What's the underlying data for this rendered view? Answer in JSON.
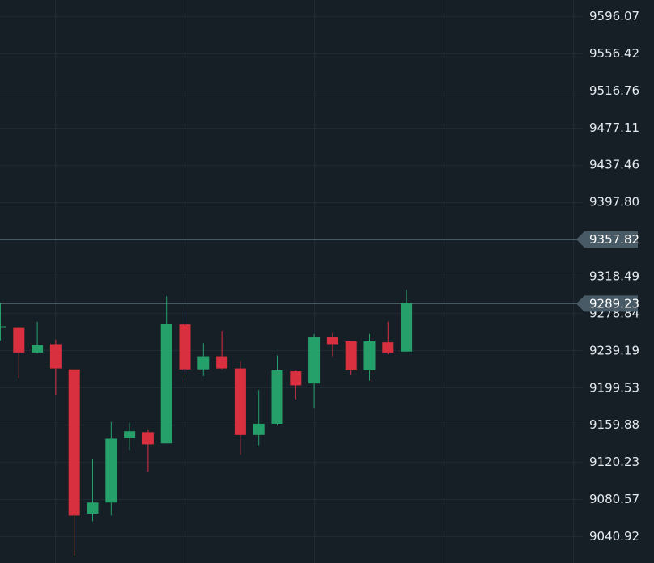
{
  "chart_data": {
    "type": "candlestick",
    "title": "",
    "xlabel": "",
    "ylabel": "",
    "ylim": [
      9020,
      9615
    ],
    "y_ticks": [
      "9596.07",
      "9556.42",
      "9516.76",
      "9477.11",
      "9437.46",
      "9397.80",
      "9318.49",
      "9278.84",
      "9239.19",
      "9199.53",
      "9159.88",
      "9120.23",
      "9080.57",
      "9040.92"
    ],
    "price_lines": [
      {
        "label": "9357.82",
        "value": 9357.82,
        "color": "#485a66"
      },
      {
        "label": "9289.23",
        "value": 9289.23,
        "color": "#485a66"
      }
    ],
    "colors": {
      "background": "#161f26",
      "grid": "#1f2b33",
      "up": "#26a06a",
      "down": "#d8303f",
      "text": "#e6ebef"
    },
    "candles": [
      {
        "o": 9265,
        "h": 9290,
        "l": 9250,
        "c": 9265
      },
      {
        "o": 9264,
        "h": 9264,
        "l": 9210,
        "c": 9237
      },
      {
        "o": 9237,
        "h": 9270,
        "l": 9236,
        "c": 9245
      },
      {
        "o": 9246,
        "h": 9251,
        "l": 9192,
        "c": 9220
      },
      {
        "o": 9219,
        "h": 9219,
        "l": 9020,
        "c": 9063
      },
      {
        "o": 9065,
        "h": 9123,
        "l": 9057,
        "c": 9077
      },
      {
        "o": 9077,
        "h": 9163,
        "l": 9063,
        "c": 9145
      },
      {
        "o": 9146,
        "h": 9162,
        "l": 9133,
        "c": 9153
      },
      {
        "o": 9152,
        "h": 9155,
        "l": 9110,
        "c": 9139
      },
      {
        "o": 9140,
        "h": 9297,
        "l": 9140,
        "c": 9268
      },
      {
        "o": 9267,
        "h": 9282,
        "l": 9211,
        "c": 9219
      },
      {
        "o": 9219,
        "h": 9247,
        "l": 9212,
        "c": 9233
      },
      {
        "o": 9233,
        "h": 9260,
        "l": 9219,
        "c": 9220
      },
      {
        "o": 9220,
        "h": 9228,
        "l": 9128,
        "c": 9149
      },
      {
        "o": 9149,
        "h": 9197,
        "l": 9138,
        "c": 9161
      },
      {
        "o": 9161,
        "h": 9234,
        "l": 9159,
        "c": 9218
      },
      {
        "o": 9217,
        "h": 9218,
        "l": 9187,
        "c": 9202
      },
      {
        "o": 9204,
        "h": 9257,
        "l": 9178,
        "c": 9254
      },
      {
        "o": 9254,
        "h": 9258,
        "l": 9233,
        "c": 9246
      },
      {
        "o": 9249,
        "h": 9249,
        "l": 9213,
        "c": 9218
      },
      {
        "o": 9218,
        "h": 9257,
        "l": 9207,
        "c": 9249
      },
      {
        "o": 9248,
        "h": 9270,
        "l": 9235,
        "c": 9237
      },
      {
        "o": 9238,
        "h": 9304,
        "l": 9238,
        "c": 9290
      }
    ]
  }
}
